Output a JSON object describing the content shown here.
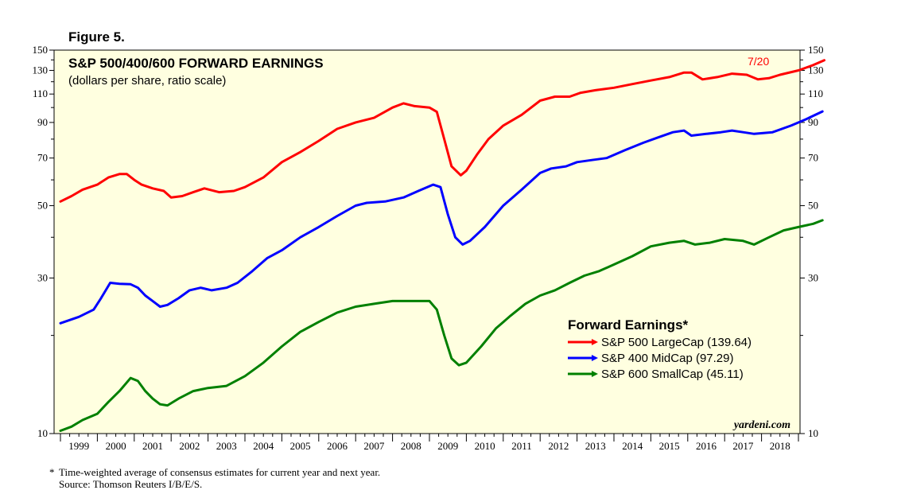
{
  "figure_label": "Figure 5.",
  "footnote": {
    "star": "*",
    "note": "Time-weighted average of consensus estimates for current year and next year.",
    "source": "Source: Thomson Reuters I/B/E/S."
  },
  "chart_data": {
    "type": "line",
    "title": "S&P 500/400/600 FORWARD EARNINGS",
    "subtitle": "(dollars per share, ratio scale)",
    "date_label": "7/20",
    "watermark": "yardeni.com",
    "yscale": "log",
    "ylim": [
      10,
      150
    ],
    "xlim": [
      1999,
      2019
    ],
    "y_ticks": [
      10,
      30,
      50,
      70,
      90,
      110,
      130,
      150
    ],
    "y_minor_ticks": [
      20,
      40,
      60,
      80,
      100,
      120,
      140
    ],
    "x_tick_labels": [
      "1999",
      "2000",
      "2001",
      "2002",
      "2003",
      "2004",
      "2005",
      "2006",
      "2007",
      "2008",
      "2009",
      "2010",
      "2011",
      "2012",
      "2013",
      "2014",
      "2015",
      "2016",
      "2017",
      "2018"
    ],
    "legend_title": "Forward Earnings*",
    "series": [
      {
        "name": "S&P 500 LargeCap (139.64)",
        "color": "#ff0000",
        "points": [
          [
            1999.0,
            51.5
          ],
          [
            1999.3,
            53.5
          ],
          [
            1999.6,
            56
          ],
          [
            2000.0,
            58
          ],
          [
            2000.3,
            61
          ],
          [
            2000.6,
            62.5
          ],
          [
            2000.8,
            62.5
          ],
          [
            2001.0,
            60
          ],
          [
            2001.2,
            58
          ],
          [
            2001.5,
            56.5
          ],
          [
            2001.8,
            55.5
          ],
          [
            2002.0,
            53
          ],
          [
            2002.3,
            53.5
          ],
          [
            2002.6,
            55
          ],
          [
            2002.9,
            56.5
          ],
          [
            2003.3,
            55
          ],
          [
            2003.7,
            55.5
          ],
          [
            2004.0,
            57
          ],
          [
            2004.5,
            61
          ],
          [
            2005.0,
            68
          ],
          [
            2005.5,
            73
          ],
          [
            2006.0,
            79
          ],
          [
            2006.5,
            86
          ],
          [
            2007.0,
            90
          ],
          [
            2007.5,
            93
          ],
          [
            2008.0,
            100
          ],
          [
            2008.3,
            103
          ],
          [
            2008.6,
            101
          ],
          [
            2009.0,
            100
          ],
          [
            2009.2,
            97
          ],
          [
            2009.4,
            80
          ],
          [
            2009.6,
            66
          ],
          [
            2009.85,
            62
          ],
          [
            2010.0,
            64
          ],
          [
            2010.3,
            72
          ],
          [
            2010.6,
            80
          ],
          [
            2011.0,
            88
          ],
          [
            2011.5,
            95
          ],
          [
            2012.0,
            105
          ],
          [
            2012.4,
            108
          ],
          [
            2012.8,
            108
          ],
          [
            2013.1,
            111
          ],
          [
            2013.5,
            113
          ],
          [
            2014.0,
            115
          ],
          [
            2014.5,
            118
          ],
          [
            2015.0,
            121
          ],
          [
            2015.5,
            124
          ],
          [
            2015.9,
            128
          ],
          [
            2016.1,
            128
          ],
          [
            2016.4,
            122
          ],
          [
            2016.8,
            124
          ],
          [
            2017.2,
            127
          ],
          [
            2017.6,
            126
          ],
          [
            2017.9,
            122
          ],
          [
            2018.2,
            123
          ],
          [
            2018.5,
            126
          ],
          [
            2019.0,
            130
          ],
          [
            2019.4,
            135
          ],
          [
            2019.7,
            139.64
          ]
        ]
      },
      {
        "name": "S&P 400 MidCap (97.29)",
        "color": "#0000ff",
        "points": [
          [
            1999.0,
            21.8
          ],
          [
            1999.5,
            22.8
          ],
          [
            1999.9,
            24
          ],
          [
            2000.1,
            26
          ],
          [
            2000.35,
            29
          ],
          [
            2000.6,
            28.8
          ],
          [
            2000.9,
            28.7
          ],
          [
            2001.1,
            28
          ],
          [
            2001.3,
            26.5
          ],
          [
            2001.5,
            25.5
          ],
          [
            2001.7,
            24.5
          ],
          [
            2001.9,
            24.8
          ],
          [
            2002.2,
            26
          ],
          [
            2002.5,
            27.5
          ],
          [
            2002.8,
            28
          ],
          [
            2003.1,
            27.5
          ],
          [
            2003.5,
            28
          ],
          [
            2003.8,
            29
          ],
          [
            2004.2,
            31.5
          ],
          [
            2004.6,
            34.5
          ],
          [
            2005.0,
            36.5
          ],
          [
            2005.5,
            40
          ],
          [
            2006.0,
            43
          ],
          [
            2006.5,
            46.5
          ],
          [
            2007.0,
            50
          ],
          [
            2007.3,
            51
          ],
          [
            2007.8,
            51.5
          ],
          [
            2008.3,
            53
          ],
          [
            2008.7,
            55.5
          ],
          [
            2009.1,
            58
          ],
          [
            2009.3,
            57
          ],
          [
            2009.5,
            47
          ],
          [
            2009.7,
            40
          ],
          [
            2009.9,
            38
          ],
          [
            2010.1,
            39
          ],
          [
            2010.5,
            43
          ],
          [
            2011.0,
            50
          ],
          [
            2011.5,
            56
          ],
          [
            2012.0,
            63
          ],
          [
            2012.3,
            65
          ],
          [
            2012.7,
            66
          ],
          [
            2013.0,
            68
          ],
          [
            2013.4,
            69
          ],
          [
            2013.8,
            70
          ],
          [
            2014.3,
            74
          ],
          [
            2014.8,
            78
          ],
          [
            2015.2,
            81
          ],
          [
            2015.6,
            84
          ],
          [
            2015.9,
            85
          ],
          [
            2016.1,
            82
          ],
          [
            2016.5,
            83
          ],
          [
            2016.9,
            84
          ],
          [
            2017.2,
            85
          ],
          [
            2017.5,
            84
          ],
          [
            2017.8,
            83
          ],
          [
            2018.3,
            84
          ],
          [
            2018.8,
            88
          ],
          [
            2019.2,
            92
          ],
          [
            2019.65,
            97.29
          ]
        ]
      },
      {
        "name": "S&P 600 SmallCap (45.11)",
        "color": "#008000",
        "points": [
          [
            1999.0,
            10.2
          ],
          [
            1999.3,
            10.5
          ],
          [
            1999.6,
            11
          ],
          [
            2000.0,
            11.5
          ],
          [
            2000.3,
            12.5
          ],
          [
            2000.6,
            13.5
          ],
          [
            2000.9,
            14.8
          ],
          [
            2001.1,
            14.5
          ],
          [
            2001.3,
            13.5
          ],
          [
            2001.5,
            12.8
          ],
          [
            2001.7,
            12.3
          ],
          [
            2001.9,
            12.2
          ],
          [
            2002.2,
            12.8
          ],
          [
            2002.6,
            13.5
          ],
          [
            2003.0,
            13.8
          ],
          [
            2003.5,
            14
          ],
          [
            2004.0,
            15
          ],
          [
            2004.5,
            16.5
          ],
          [
            2005.0,
            18.5
          ],
          [
            2005.5,
            20.5
          ],
          [
            2006.0,
            22
          ],
          [
            2006.5,
            23.5
          ],
          [
            2007.0,
            24.5
          ],
          [
            2007.5,
            25
          ],
          [
            2008.0,
            25.5
          ],
          [
            2008.5,
            25.5
          ],
          [
            2009.0,
            25.5
          ],
          [
            2009.2,
            24
          ],
          [
            2009.4,
            20
          ],
          [
            2009.6,
            17
          ],
          [
            2009.8,
            16.2
          ],
          [
            2010.0,
            16.5
          ],
          [
            2010.4,
            18.5
          ],
          [
            2010.8,
            21
          ],
          [
            2011.2,
            23
          ],
          [
            2011.6,
            25
          ],
          [
            2012.0,
            26.5
          ],
          [
            2012.4,
            27.5
          ],
          [
            2012.8,
            29
          ],
          [
            2013.2,
            30.5
          ],
          [
            2013.6,
            31.5
          ],
          [
            2014.0,
            33
          ],
          [
            2014.5,
            35
          ],
          [
            2015.0,
            37.5
          ],
          [
            2015.5,
            38.5
          ],
          [
            2015.9,
            39
          ],
          [
            2016.2,
            38
          ],
          [
            2016.6,
            38.5
          ],
          [
            2017.0,
            39.5
          ],
          [
            2017.5,
            39
          ],
          [
            2017.8,
            38
          ],
          [
            2018.2,
            40
          ],
          [
            2018.6,
            42
          ],
          [
            2019.0,
            43
          ],
          [
            2019.4,
            44
          ],
          [
            2019.65,
            45.11
          ]
        ]
      }
    ]
  }
}
